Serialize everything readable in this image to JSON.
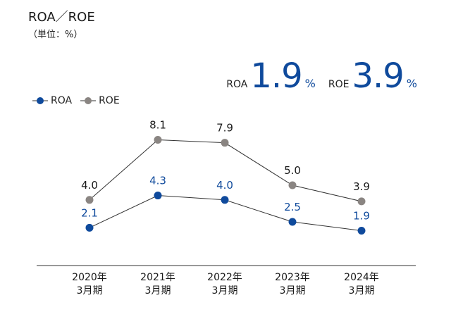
{
  "header": {
    "title": "ROA／ROE",
    "unit": "（単位：%）"
  },
  "kpis": {
    "roa": {
      "label": "ROA",
      "value": "1.9",
      "unit": "%"
    },
    "roe": {
      "label": "ROE",
      "value": "3.9",
      "unit": "%"
    }
  },
  "colors": {
    "roa": "#0f4a9c",
    "roe": "#8a8582",
    "line": "#333333"
  },
  "chart_data": {
    "type": "line",
    "categories": [
      [
        "2020年",
        "3月期"
      ],
      [
        "2021年",
        "3月期"
      ],
      [
        "2022年",
        "3月期"
      ],
      [
        "2023年",
        "3月期"
      ],
      [
        "2024年",
        "3月期"
      ]
    ],
    "series": [
      {
        "name": "ROA",
        "values": [
          2.1,
          4.3,
          4.0,
          2.5,
          1.9
        ],
        "labels": [
          "2.1",
          "4.3",
          "4.0",
          "2.5",
          "1.9"
        ]
      },
      {
        "name": "ROE",
        "values": [
          4.0,
          8.1,
          7.9,
          5.0,
          3.9
        ],
        "labels": [
          "4.0",
          "8.1",
          "7.9",
          "5.0",
          "3.9"
        ]
      }
    ],
    "legend": "top-left",
    "grid": false
  }
}
